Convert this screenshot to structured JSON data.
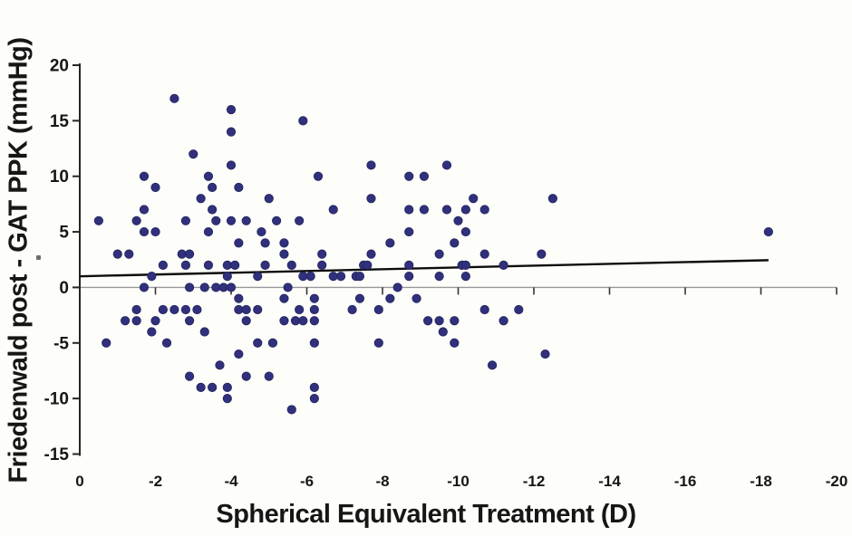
{
  "figure": {
    "y_axis_title": "Friedenwald post - GAT PPK (mmHg)",
    "x_axis_title": "Spherical Equivalent Treatment (D)"
  },
  "colors": {
    "point": "#30307c",
    "trend_line": "#0d0d0d",
    "axis": "#262626",
    "zero_line": "#999999",
    "tick": "#333333",
    "text": "#161616"
  },
  "chart_data": {
    "type": "scatter",
    "title": "",
    "xlabel": "Spherical Equivalent Treatment (D)",
    "ylabel": "Friedenwald post - GAT PPK (mmHg)",
    "xlim": [
      0,
      -20
    ],
    "ylim": [
      20,
      -15
    ],
    "x_ticks": [
      0,
      -2,
      -4,
      -6,
      -8,
      -10,
      -12,
      -14,
      -16,
      -18,
      -20
    ],
    "y_ticks": [
      20,
      15,
      10,
      5,
      0,
      -5,
      -10,
      -15
    ],
    "grid": false,
    "legend": null,
    "zero_line_y": 0,
    "trend_line": {
      "x": [
        0,
        -18.2
      ],
      "y": [
        1.0,
        2.45
      ]
    },
    "points": [
      [
        -2.5,
        17
      ],
      [
        -4.0,
        16
      ],
      [
        -5.9,
        15
      ],
      [
        -4.0,
        14
      ],
      [
        -3.0,
        12
      ],
      [
        -4.0,
        11
      ],
      [
        -7.7,
        11
      ],
      [
        -9.7,
        11
      ],
      [
        -1.7,
        10
      ],
      [
        -3.4,
        10
      ],
      [
        -6.3,
        10
      ],
      [
        -8.7,
        10
      ],
      [
        -9.1,
        10
      ],
      [
        -2.0,
        9
      ],
      [
        -3.5,
        9
      ],
      [
        -4.2,
        9
      ],
      [
        -3.2,
        8
      ],
      [
        -5.0,
        8
      ],
      [
        -7.7,
        8
      ],
      [
        -10.4,
        8
      ],
      [
        -12.5,
        8
      ],
      [
        -1.7,
        7
      ],
      [
        -3.5,
        7
      ],
      [
        -6.7,
        7
      ],
      [
        -8.7,
        7
      ],
      [
        -9.1,
        7
      ],
      [
        -9.7,
        7
      ],
      [
        -10.2,
        7
      ],
      [
        -10.7,
        7
      ],
      [
        -0.5,
        6
      ],
      [
        -1.5,
        6
      ],
      [
        -2.8,
        6
      ],
      [
        -3.6,
        6
      ],
      [
        -4.0,
        6
      ],
      [
        -4.4,
        6
      ],
      [
        -5.2,
        6
      ],
      [
        -5.8,
        6
      ],
      [
        -10.0,
        6
      ],
      [
        -1.7,
        5
      ],
      [
        -2.0,
        5
      ],
      [
        -3.4,
        5
      ],
      [
        -4.8,
        5
      ],
      [
        -8.7,
        5
      ],
      [
        -10.2,
        5
      ],
      [
        -18.2,
        5
      ],
      [
        -4.2,
        4
      ],
      [
        -4.9,
        4
      ],
      [
        -5.4,
        4
      ],
      [
        -8.2,
        4
      ],
      [
        -9.9,
        4
      ],
      [
        -1.0,
        3
      ],
      [
        -1.3,
        3
      ],
      [
        -2.7,
        3
      ],
      [
        -2.9,
        3
      ],
      [
        -5.4,
        3
      ],
      [
        -6.4,
        3
      ],
      [
        -7.7,
        3
      ],
      [
        -9.5,
        3
      ],
      [
        -10.7,
        3
      ],
      [
        -12.2,
        3
      ],
      [
        -2.2,
        2
      ],
      [
        -2.8,
        2
      ],
      [
        -3.4,
        2
      ],
      [
        -3.9,
        2
      ],
      [
        -4.1,
        2
      ],
      [
        -4.9,
        2
      ],
      [
        -5.6,
        2
      ],
      [
        -6.4,
        2
      ],
      [
        -7.5,
        2
      ],
      [
        -7.6,
        2
      ],
      [
        -8.7,
        2
      ],
      [
        -10.1,
        2
      ],
      [
        -10.2,
        2
      ],
      [
        -11.2,
        2
      ],
      [
        -1.9,
        1
      ],
      [
        -3.9,
        1
      ],
      [
        -4.7,
        1
      ],
      [
        -5.9,
        1
      ],
      [
        -6.1,
        1
      ],
      [
        -6.7,
        1
      ],
      [
        -6.9,
        1
      ],
      [
        -7.3,
        1
      ],
      [
        -7.4,
        1
      ],
      [
        -8.7,
        1
      ],
      [
        -9.5,
        1
      ],
      [
        -10.2,
        1
      ],
      [
        -1.7,
        0
      ],
      [
        -2.9,
        0
      ],
      [
        -3.3,
        0
      ],
      [
        -3.6,
        0
      ],
      [
        -3.8,
        0
      ],
      [
        -4.0,
        0
      ],
      [
        -5.5,
        0
      ],
      [
        -8.4,
        0
      ],
      [
        -4.2,
        -1
      ],
      [
        -5.4,
        -1
      ],
      [
        -6.2,
        -1
      ],
      [
        -7.4,
        -1
      ],
      [
        -8.2,
        -1
      ],
      [
        -8.9,
        -1
      ],
      [
        -1.5,
        -2
      ],
      [
        -2.2,
        -2
      ],
      [
        -2.5,
        -2
      ],
      [
        -2.8,
        -2
      ],
      [
        -3.1,
        -2
      ],
      [
        -4.2,
        -2
      ],
      [
        -4.4,
        -2
      ],
      [
        -4.7,
        -2
      ],
      [
        -5.8,
        -2
      ],
      [
        -6.2,
        -2
      ],
      [
        -7.2,
        -2
      ],
      [
        -7.9,
        -2
      ],
      [
        -10.7,
        -2
      ],
      [
        -11.6,
        -2
      ],
      [
        -1.2,
        -3
      ],
      [
        -1.5,
        -3
      ],
      [
        -2.0,
        -3
      ],
      [
        -2.9,
        -3
      ],
      [
        -4.4,
        -3
      ],
      [
        -5.4,
        -3
      ],
      [
        -5.7,
        -3
      ],
      [
        -5.9,
        -3
      ],
      [
        -6.2,
        -3
      ],
      [
        -9.2,
        -3
      ],
      [
        -9.5,
        -3
      ],
      [
        -9.9,
        -3
      ],
      [
        -11.2,
        -3
      ],
      [
        -1.9,
        -4
      ],
      [
        -3.3,
        -4
      ],
      [
        -9.6,
        -4
      ],
      [
        -0.7,
        -5
      ],
      [
        -2.3,
        -5
      ],
      [
        -4.7,
        -5
      ],
      [
        -5.1,
        -5
      ],
      [
        -6.2,
        -5
      ],
      [
        -7.9,
        -5
      ],
      [
        -9.9,
        -5
      ],
      [
        -4.2,
        -6
      ],
      [
        -12.3,
        -6
      ],
      [
        -3.7,
        -7
      ],
      [
        -10.9,
        -7
      ],
      [
        -2.9,
        -8
      ],
      [
        -4.4,
        -8
      ],
      [
        -5.0,
        -8
      ],
      [
        -3.2,
        -9
      ],
      [
        -3.5,
        -9
      ],
      [
        -3.9,
        -9
      ],
      [
        -6.2,
        -9
      ],
      [
        -3.9,
        -10
      ],
      [
        -6.2,
        -10
      ],
      [
        -5.6,
        -11
      ]
    ]
  }
}
